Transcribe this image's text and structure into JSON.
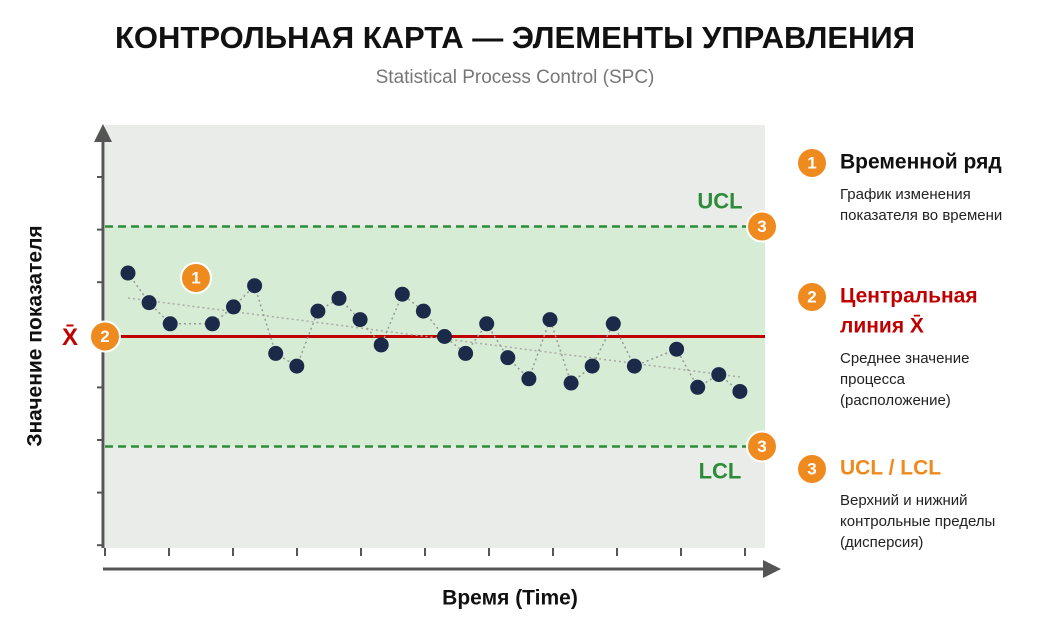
{
  "chart_data": {
    "type": "line",
    "title": "КОНТРОЛЬНАЯ КАРТА — ЭЛЕМЕНТЫ УПРАВЛЕНИЯ",
    "subtitle": "Statistical Process Control (SPC)",
    "x_label": "Время (Time)",
    "y_label": "Значение показателя",
    "values": [
      65,
      58,
      53,
      null,
      53,
      57,
      62,
      46,
      43,
      56,
      59,
      54,
      48,
      60,
      56,
      50,
      46,
      53,
      45,
      40,
      54,
      39,
      43,
      53,
      43,
      null,
      47,
      38,
      41,
      37
    ],
    "color": "#1c2a4a",
    "ylim": [
      0,
      100
    ],
    "center_line": {
      "label": "X̄",
      "value": 50,
      "color": "#c00000"
    },
    "ucl": {
      "label": "UCL",
      "value": 76,
      "color": "#2e8b3a"
    },
    "lcl": {
      "label": "LCL",
      "value": 24,
      "color": "#2e8b3a"
    },
    "legend": [
      {
        "number": "1",
        "title": [
          "Временной ряд"
        ],
        "text": [
          "График изменения",
          "показателя во времени"
        ]
      },
      {
        "number": "2",
        "title": [
          "Центральная",
          "линия X̄"
        ],
        "text": [
          "Среднее значение",
          "процесса",
          "(расположение)"
        ]
      },
      {
        "number": "3",
        "title": [
          "UCL / LCL"
        ],
        "text": [
          "Верхний и нижний",
          "контрольные пределы",
          "(дисперсия)"
        ]
      }
    ]
  }
}
